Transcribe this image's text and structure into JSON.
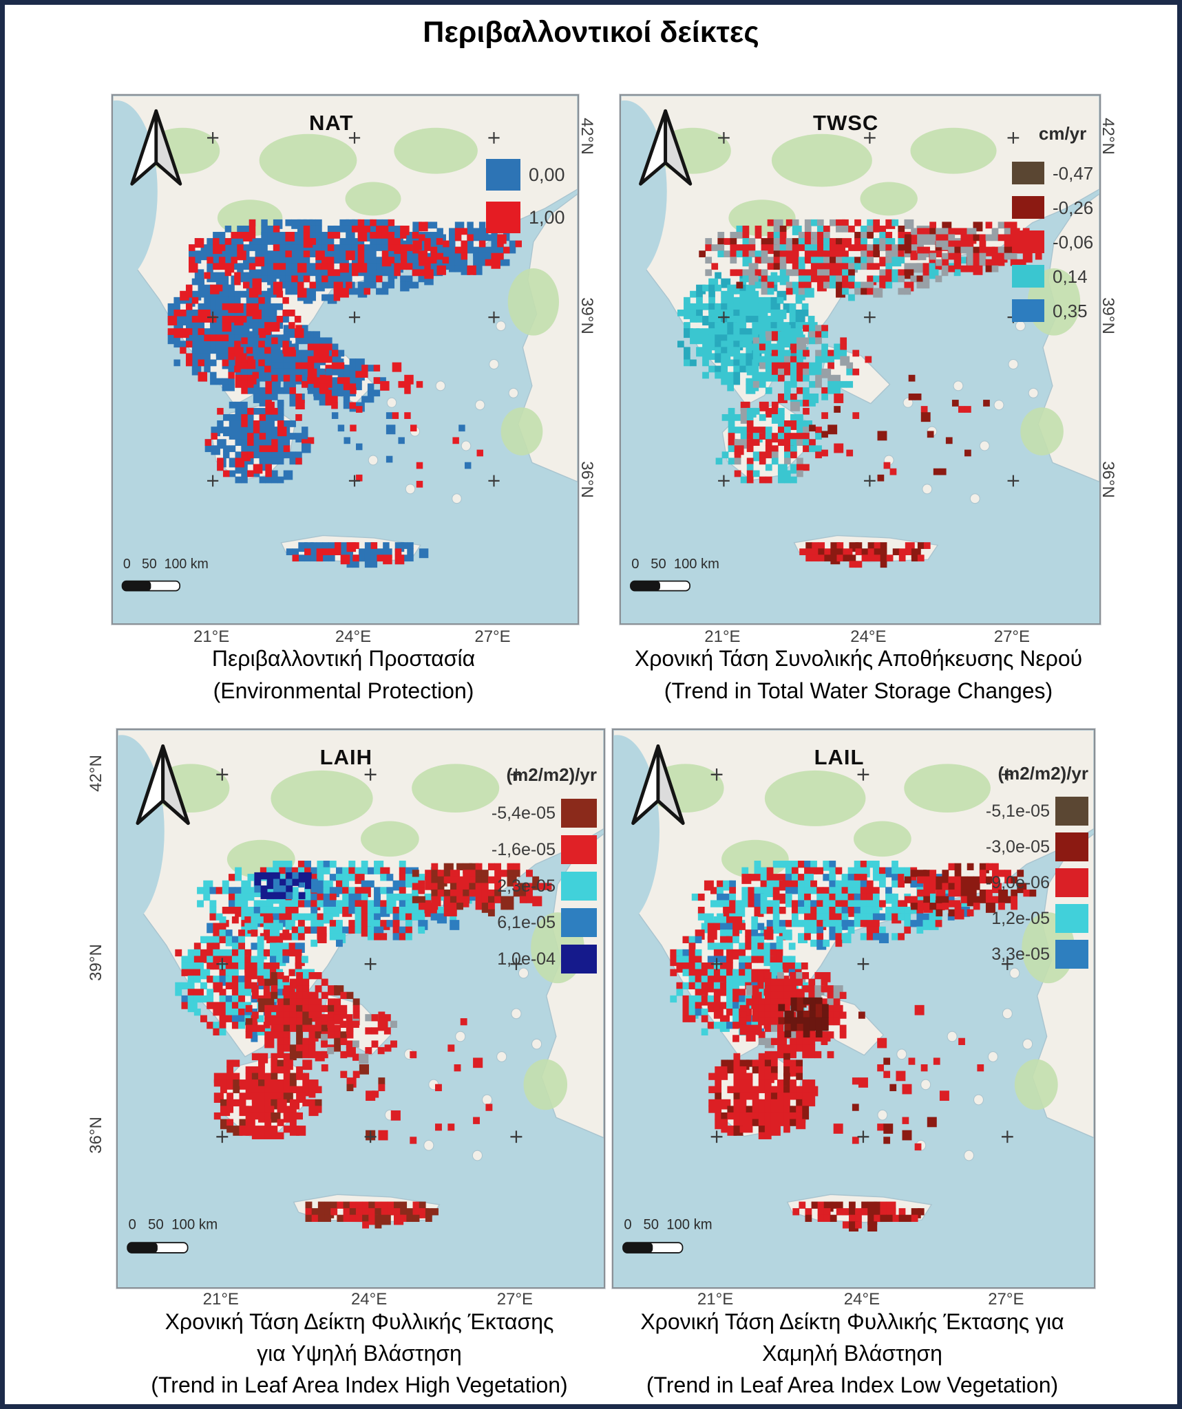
{
  "figure_title": "Περιβαλλοντικοί δείκτες",
  "colors": {
    "frame": "#1c2b4a",
    "sea": "#b5d6e0",
    "land": "#f2efe8",
    "vegetation_green": "#c3dfae"
  },
  "panels": [
    {
      "map_label": "NAT",
      "legend": {
        "title": "",
        "items": [
          {
            "label": "0,00",
            "color": "#2d74b5"
          },
          {
            "label": "1,00",
            "color": "#e51c23"
          }
        ]
      },
      "caption_lines": [
        "Περιβαλλοντική Προστασία",
        "(Environmental Protection)"
      ],
      "lat_labels": [
        "42°N",
        "39°N",
        "36°N"
      ],
      "lon_labels": [
        "21°E",
        "24°E",
        "27°E"
      ],
      "scale_text": "0   50  100 km"
    },
    {
      "map_label": "TWSC",
      "legend": {
        "title": "cm/yr",
        "items": [
          {
            "label": "-0,47",
            "color": "#5a4632"
          },
          {
            "label": "-0,26",
            "color": "#8c1a12"
          },
          {
            "label": "-0,06",
            "color": "#dc1f24"
          },
          {
            "label": "0,14",
            "color": "#3ac6d0"
          },
          {
            "label": "0,35",
            "color": "#2d7dbf"
          }
        ]
      },
      "caption_lines": [
        "Χρονική Τάση Συνολικής Αποθήκευσης Νερού",
        "(Trend in Total Water Storage Changes)"
      ],
      "lat_labels": [
        "42°N",
        "39°N",
        "36°N"
      ],
      "lon_labels": [
        "21°E",
        "24°E",
        "27°E"
      ],
      "scale_text": "0   50  100 km"
    },
    {
      "map_label": "LAIH",
      "legend": {
        "title": "(m2/m2)/yr",
        "items": [
          {
            "label": "-5,4e-05",
            "color": "#8b2a1b"
          },
          {
            "label": "-1,6e-05",
            "color": "#e02126"
          },
          {
            "label": "2,3e-05",
            "color": "#41d1da"
          },
          {
            "label": "6,1e-05",
            "color": "#2e7fc0"
          },
          {
            "label": "1,0e-04",
            "color": "#151a8c"
          }
        ]
      },
      "caption_lines": [
        "Χρονική Τάση Δείκτη Φυλλικής Έκτασης",
        "για Υψηλή Βλάστηση",
        "(Trend in Leaf Area Index High Vegetation)"
      ],
      "lat_labels": [
        "42°N",
        "39°N",
        "36°N"
      ],
      "lon_labels": [
        "21°E",
        "24°E",
        "27°E"
      ],
      "scale_text": "0   50  100 km"
    },
    {
      "map_label": "LAIL",
      "legend": {
        "title": "(m2/m2)/yr",
        "items": [
          {
            "label": "-5,1e-05",
            "color": "#5b4733"
          },
          {
            "label": "-3,0e-05",
            "color": "#8c1a12"
          },
          {
            "label": "-9,0e-06",
            "color": "#da2026"
          },
          {
            "label": "1,2e-05",
            "color": "#41d0da"
          },
          {
            "label": "3,3e-05",
            "color": "#2e7fbf"
          }
        ]
      },
      "caption_lines": [
        "Χρονική Τάση Δείκτη Φυλλικής Έκτασης για",
        "Χαμηλή Βλάστηση",
        "(Trend in Leaf Area Index Low Vegetation)"
      ],
      "lat_labels": [
        "42°N",
        "39°N",
        "36°N"
      ],
      "lon_labels": [
        "21°E",
        "24°E",
        "27°E"
      ],
      "scale_text": "0   50  100 km"
    }
  ]
}
